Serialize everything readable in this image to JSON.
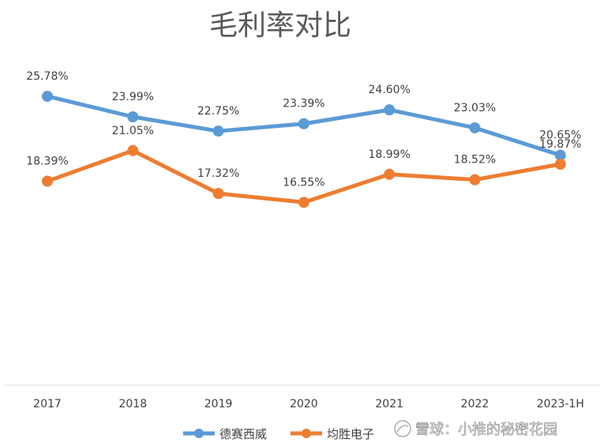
{
  "chart_data": {
    "type": "line",
    "title": "毛利率对比",
    "categories": [
      "2017",
      "2018",
      "2019",
      "2020",
      "2021",
      "2022",
      "2023-1H"
    ],
    "series": [
      {
        "name": "德赛西威",
        "color": "#5B9BD5",
        "values": [
          25.78,
          23.99,
          22.75,
          23.39,
          24.6,
          23.03,
          20.65
        ],
        "labels": [
          "25.78%",
          "23.99%",
          "22.75%",
          "23.39%",
          "24.60%",
          "23.03%",
          "20.65%"
        ]
      },
      {
        "name": "均胜电子",
        "color": "#ED7D31",
        "values": [
          18.39,
          21.05,
          17.32,
          16.55,
          18.99,
          18.52,
          19.87
        ],
        "labels": [
          "18.39%",
          "21.05%",
          "17.32%",
          "16.55%",
          "18.99%",
          "18.52%",
          "19.87%"
        ]
      }
    ],
    "ylim": [
      13.0,
      27.0
    ],
    "grid": false,
    "legend_position": "bottom"
  },
  "watermark": {
    "text": "雪球：小推的秘密花园",
    "icon": "snowball-logo-icon"
  }
}
